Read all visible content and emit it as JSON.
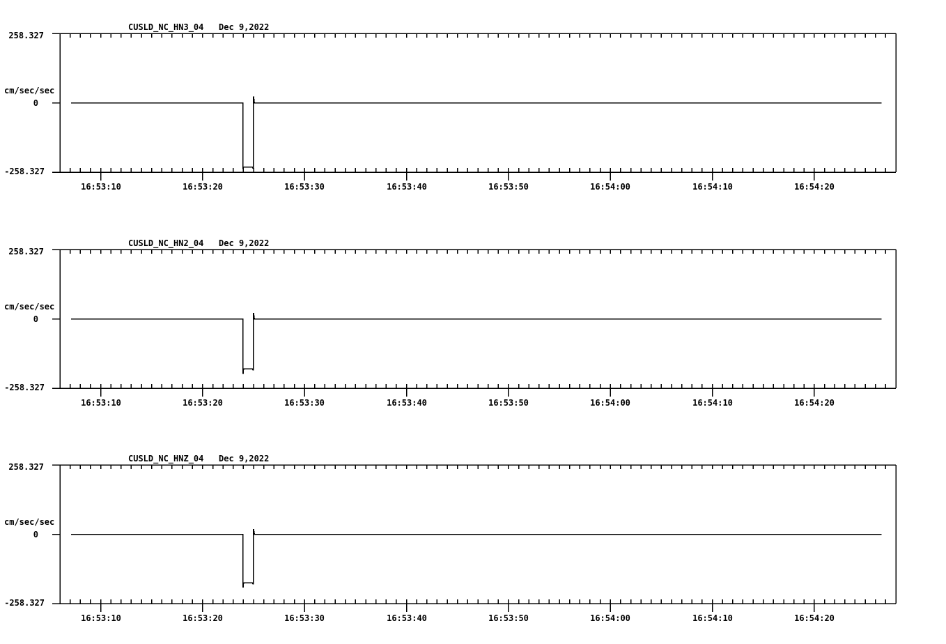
{
  "page": {
    "background": "#ffffff",
    "line_color": "#000000",
    "text_color": "#000000"
  },
  "chart_data": [
    {
      "type": "line",
      "title": "CUSLD_NC_HN3_04   Dec 9,2022",
      "station": "CUSLD_NC_HN3_04",
      "date": "Dec 9,2022",
      "ylabel": "cm/sec/sec",
      "ylim": [
        -258.327,
        258.327
      ],
      "ytick_labels": [
        "258.327",
        "0",
        "-258.327"
      ],
      "x_window_seconds_after_1653": [
        6,
        88
      ],
      "x_minor_tick_sec": 1,
      "x_major_ticks_sec": [
        10,
        20,
        30,
        40,
        50,
        60,
        70,
        80
      ],
      "xtick_labels": [
        "16:53:10",
        "16:53:20",
        "16:53:30",
        "16:53:40",
        "16:53:50",
        "16:54:00",
        "16:54:10",
        "16:54:20"
      ],
      "grid": false,
      "legend": false,
      "trace_points_sec_value": [
        [
          7.1,
          0
        ],
        [
          23.95,
          0
        ],
        [
          23.97,
          -247
        ],
        [
          24.02,
          -239
        ],
        [
          24.88,
          -239
        ],
        [
          24.93,
          -243
        ],
        [
          24.99,
          -243
        ],
        [
          25.0,
          24
        ],
        [
          25.08,
          0
        ],
        [
          86.6,
          0
        ]
      ]
    },
    {
      "type": "line",
      "title": "CUSLD_NC_HN2_04   Dec 9,2022",
      "station": "CUSLD_NC_HN2_04",
      "date": "Dec 9,2022",
      "ylabel": "cm/sec/sec",
      "ylim": [
        -258.327,
        258.327
      ],
      "ytick_labels": [
        "258.327",
        "0",
        "-258.327"
      ],
      "x_window_seconds_after_1653": [
        6,
        88
      ],
      "x_minor_tick_sec": 1,
      "x_major_ticks_sec": [
        10,
        20,
        30,
        40,
        50,
        60,
        70,
        80
      ],
      "xtick_labels": [
        "16:53:10",
        "16:53:20",
        "16:53:30",
        "16:53:40",
        "16:53:50",
        "16:54:00",
        "16:54:10",
        "16:54:20"
      ],
      "grid": false,
      "legend": false,
      "trace_points_sec_value": [
        [
          7.1,
          0
        ],
        [
          23.95,
          0
        ],
        [
          23.97,
          -205
        ],
        [
          24.02,
          -186
        ],
        [
          24.88,
          -186
        ],
        [
          24.93,
          -190
        ],
        [
          24.99,
          -190
        ],
        [
          25.0,
          22
        ],
        [
          25.08,
          0
        ],
        [
          86.6,
          0
        ]
      ]
    },
    {
      "type": "line",
      "title": "CUSLD_NC_HNZ_04   Dec 9,2022",
      "station": "CUSLD_NC_HNZ_04",
      "date": "Dec 9,2022",
      "ylabel": "cm/sec/sec",
      "ylim": [
        -258.327,
        258.327
      ],
      "ytick_labels": [
        "258.327",
        "0",
        "-258.327"
      ],
      "x_window_seconds_after_1653": [
        6,
        88
      ],
      "x_minor_tick_sec": 1,
      "x_major_ticks_sec": [
        10,
        20,
        30,
        40,
        50,
        60,
        70,
        80
      ],
      "xtick_labels": [
        "16:53:10",
        "16:53:20",
        "16:53:30",
        "16:53:40",
        "16:53:50",
        "16:54:00",
        "16:54:10",
        "16:54:20"
      ],
      "grid": false,
      "legend": false,
      "trace_points_sec_value": [
        [
          7.1,
          0
        ],
        [
          23.95,
          0
        ],
        [
          23.97,
          -198
        ],
        [
          24.02,
          -181
        ],
        [
          24.88,
          -181
        ],
        [
          24.93,
          -185
        ],
        [
          24.99,
          -185
        ],
        [
          25.0,
          19
        ],
        [
          25.08,
          0
        ],
        [
          86.6,
          0
        ]
      ]
    }
  ]
}
